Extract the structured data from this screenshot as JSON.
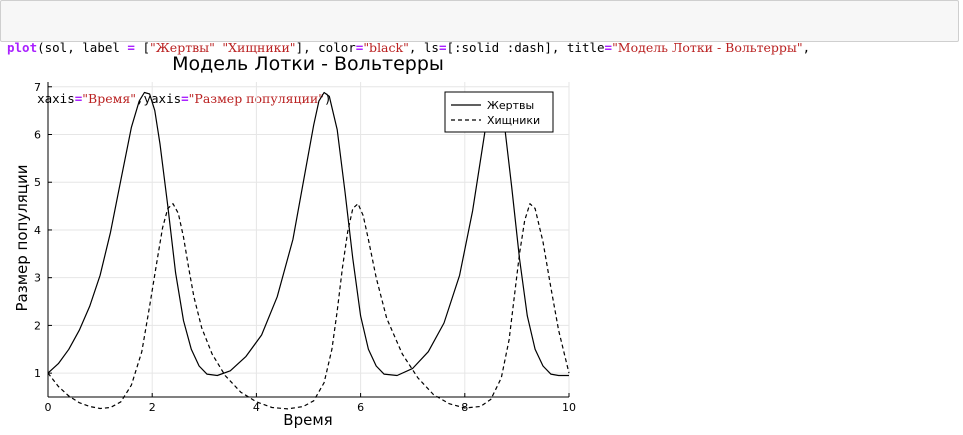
{
  "code": {
    "fn": "plot",
    "open": "(sol, label ",
    "eq1": "=",
    "label_open": " [",
    "label1": "\"Жертвы\"",
    "label_sep": " ",
    "label2": "\"Хищники\"",
    "after_labels": "], color",
    "eq2": "=",
    "color_val": "\"black\"",
    "after_color": ", ls",
    "eq3": "=",
    "ls_val": "[:solid :dash], title",
    "eq4": "=",
    "title_val": "\"Модель Лотки - Вольтерры\"",
    "trail1": ",",
    "indent": "    xaxis",
    "eq5": "=",
    "xaxis_val": "\"Время\"",
    "mid": ",yaxis",
    "eq6": "=",
    "yaxis_val": "\"Размер популяции\"",
    "close": ")"
  },
  "chart_data": {
    "type": "line",
    "title": "Модель Лотки - Вольтерры",
    "xlabel": "Время",
    "ylabel": "Размер популяции",
    "xlim": [
      0,
      10
    ],
    "ylim": [
      0.5,
      7.1
    ],
    "xticks": [
      0,
      2,
      4,
      6,
      8,
      10
    ],
    "yticks": [
      1,
      2,
      3,
      4,
      5,
      6,
      7
    ],
    "grid": true,
    "legend_position": "top-right",
    "line_color": "#000000",
    "series": [
      {
        "name": "Жертвы",
        "style": "solid",
        "x": [
          0,
          0.2,
          0.4,
          0.6,
          0.8,
          1.0,
          1.2,
          1.4,
          1.6,
          1.75,
          1.85,
          1.95,
          2.05,
          2.15,
          2.3,
          2.45,
          2.6,
          2.75,
          2.9,
          3.05,
          3.25,
          3.5,
          3.8,
          4.1,
          4.4,
          4.7,
          4.95,
          5.1,
          5.2,
          5.3,
          5.4,
          5.55,
          5.7,
          5.85,
          6.0,
          6.15,
          6.3,
          6.45,
          6.7,
          7.0,
          7.3,
          7.6,
          7.9,
          8.15,
          8.35,
          8.45,
          8.55,
          8.65,
          8.75,
          8.9,
          9.05,
          9.2,
          9.35,
          9.5,
          9.65,
          9.8,
          10.0
        ],
        "y": [
          1.0,
          1.2,
          1.5,
          1.9,
          2.4,
          3.05,
          3.95,
          5.05,
          6.15,
          6.7,
          6.88,
          6.85,
          6.5,
          5.8,
          4.5,
          3.1,
          2.1,
          1.5,
          1.15,
          0.98,
          0.95,
          1.05,
          1.35,
          1.8,
          2.6,
          3.8,
          5.3,
          6.2,
          6.7,
          6.88,
          6.8,
          6.1,
          4.8,
          3.4,
          2.2,
          1.5,
          1.15,
          0.98,
          0.95,
          1.1,
          1.45,
          2.05,
          3.05,
          4.4,
          5.8,
          6.5,
          6.85,
          6.8,
          6.3,
          4.9,
          3.4,
          2.2,
          1.5,
          1.15,
          0.98,
          0.95,
          0.95
        ]
      },
      {
        "name": "Хищники",
        "style": "dash",
        "x": [
          0,
          0.2,
          0.4,
          0.6,
          0.8,
          1.0,
          1.2,
          1.4,
          1.6,
          1.8,
          1.95,
          2.1,
          2.2,
          2.3,
          2.4,
          2.5,
          2.6,
          2.7,
          2.8,
          2.95,
          3.15,
          3.4,
          3.7,
          4.0,
          4.3,
          4.6,
          4.9,
          5.1,
          5.3,
          5.45,
          5.55,
          5.65,
          5.75,
          5.85,
          5.95,
          6.05,
          6.15,
          6.3,
          6.5,
          6.8,
          7.1,
          7.4,
          7.7,
          8.0,
          8.3,
          8.5,
          8.7,
          8.85,
          8.95,
          9.05,
          9.15,
          9.25,
          9.35,
          9.5,
          9.65,
          9.8,
          10.0
        ],
        "y": [
          1.0,
          0.72,
          0.52,
          0.38,
          0.3,
          0.26,
          0.28,
          0.4,
          0.75,
          1.45,
          2.4,
          3.4,
          4.05,
          4.45,
          4.55,
          4.35,
          3.85,
          3.2,
          2.6,
          1.95,
          1.4,
          0.95,
          0.6,
          0.4,
          0.28,
          0.25,
          0.3,
          0.42,
          0.8,
          1.5,
          2.3,
          3.2,
          3.95,
          4.45,
          4.55,
          4.3,
          3.8,
          3.0,
          2.15,
          1.4,
          0.9,
          0.55,
          0.36,
          0.27,
          0.3,
          0.45,
          0.9,
          1.7,
          2.6,
          3.5,
          4.2,
          4.55,
          4.45,
          3.75,
          2.8,
          1.9,
          1.0
        ]
      }
    ]
  }
}
